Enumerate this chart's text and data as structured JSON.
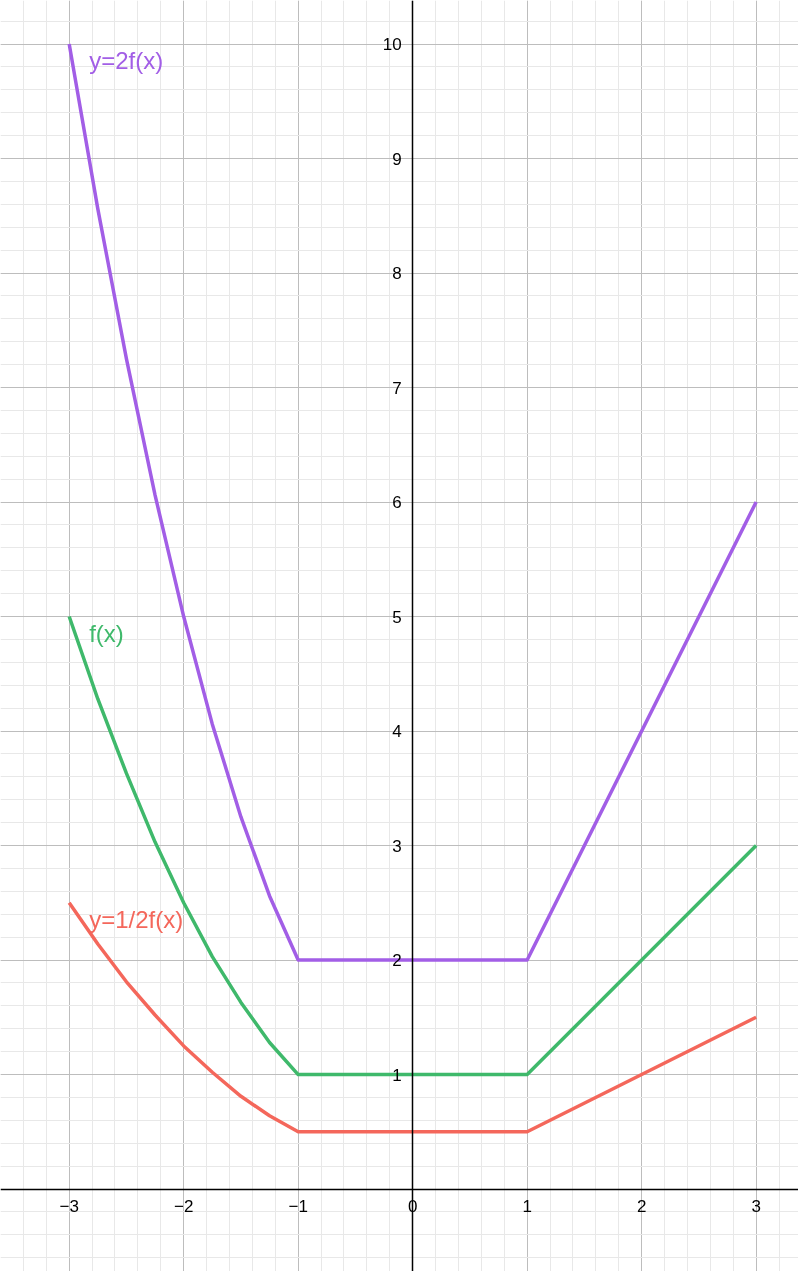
{
  "chart_data": {
    "type": "line",
    "xlim": [
      -3.6,
      3.37
    ],
    "ylim": [
      -0.72,
      10.38
    ],
    "xticks": [
      {
        "value": -3,
        "label": "−3"
      },
      {
        "value": -2,
        "label": "−2"
      },
      {
        "value": -1,
        "label": "−1"
      },
      0,
      1,
      2,
      3
    ],
    "yticks": [
      1,
      2,
      3,
      4,
      5,
      6,
      7,
      8,
      9,
      10
    ],
    "grid": true,
    "marker": "none",
    "line_style": "solid",
    "series": [
      {
        "name": "y=2f(x)",
        "color": "#a25ee6",
        "x": [
          -3,
          -2.75,
          -2.5,
          -2.25,
          -2,
          -1.75,
          -1.5,
          -1.25,
          -1,
          1,
          3
        ],
        "values": [
          10,
          8.56,
          7.25,
          6.06,
          5,
          4.06,
          3.25,
          2.56,
          2,
          2,
          6
        ]
      },
      {
        "name": "f(x)",
        "color": "#3fb96b",
        "x": [
          -3,
          -2.75,
          -2.5,
          -2.25,
          -2,
          -1.75,
          -1.5,
          -1.25,
          -1,
          1,
          3
        ],
        "values": [
          5,
          4.28,
          3.63,
          3.03,
          2.5,
          2.03,
          1.63,
          1.28,
          1,
          1,
          3
        ]
      },
      {
        "name": "y=1/2f(x)",
        "color": "#f4675b",
        "x": [
          -3,
          -2.75,
          -2.5,
          -2.25,
          -2,
          -1.75,
          -1.5,
          -1.25,
          -1,
          1,
          3
        ],
        "values": [
          2.5,
          2.14,
          1.81,
          1.52,
          1.25,
          1.02,
          0.81,
          0.64,
          0.5,
          0.5,
          1.5
        ]
      }
    ]
  }
}
